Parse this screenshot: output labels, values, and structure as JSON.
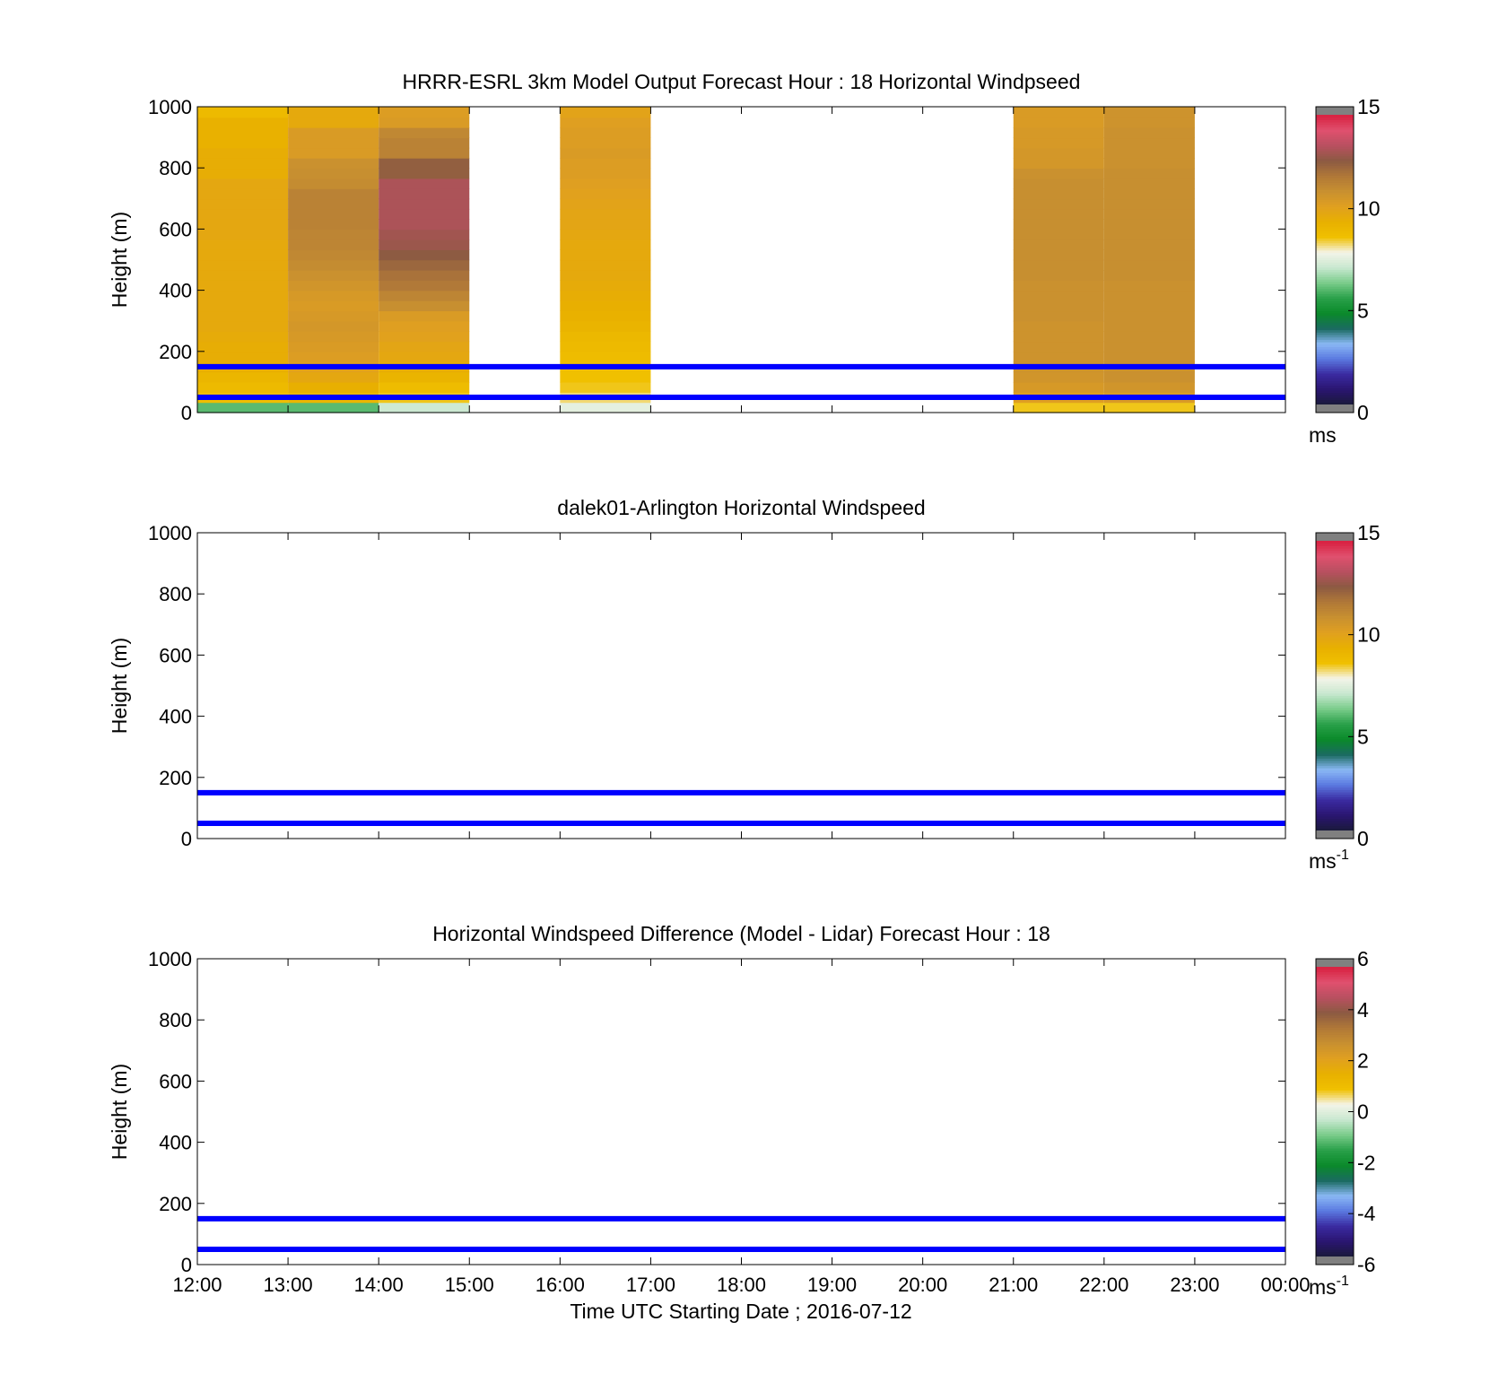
{
  "chart_data": [
    {
      "type": "heatmap",
      "title": "HRRR-ESRL 3km Model Output   Forecast Hour : 18 Horizontal Windpseed",
      "ylabel": "Height (m)",
      "ylim": [
        0,
        1000
      ],
      "yticks": [
        "0",
        "200",
        "400",
        "600",
        "800",
        "1000"
      ],
      "xlim_hours": [
        12,
        24
      ],
      "x_ticks": [
        "12:00",
        "13:00",
        "14:00",
        "15:00",
        "16:00",
        "17:00",
        "18:00",
        "19:00",
        "20:00",
        "21:00",
        "22:00",
        "23:00",
        "00:00"
      ],
      "show_x_tick_labels": false,
      "colorbar": {
        "range": [
          0,
          15
        ],
        "ticks": [
          "0",
          "5",
          "10",
          "15"
        ],
        "unit": "ms",
        "unit_sup": ""
      },
      "reference_lines_m": [
        50,
        150
      ],
      "reference_line_color": "#0000ff",
      "bin_height_m": 33.3,
      "columns": [
        {
          "time": "12:00",
          "values": [
            6.0,
            8.8,
            9.0,
            9.2,
            9.5,
            9.6,
            9.6,
            9.7,
            9.8,
            9.8,
            9.8,
            9.8,
            9.8,
            9.8,
            9.8,
            9.8,
            9.8,
            9.9,
            9.9,
            9.9,
            9.9,
            9.9,
            9.9,
            9.6,
            9.6,
            9.6,
            9.4,
            9.4,
            9.4,
            9.0
          ]
        },
        {
          "time": "13:00",
          "values": [
            6.0,
            9.2,
            9.5,
            9.9,
            10.2,
            10.4,
            10.5,
            10.6,
            10.7,
            10.6,
            10.5,
            10.6,
            10.8,
            11.0,
            11.2,
            11.3,
            11.4,
            11.4,
            11.5,
            11.5,
            11.5,
            11.5,
            11.2,
            11.1,
            11.0,
            10.5,
            10.5,
            10.5,
            9.8,
            9.8
          ]
        },
        {
          "time": "14:00",
          "values": [
            7.2,
            8.6,
            8.9,
            9.3,
            9.6,
            9.9,
            10.0,
            10.2,
            10.3,
            10.5,
            11.1,
            11.4,
            11.8,
            12.0,
            12.3,
            12.6,
            12.9,
            13.0,
            13.2,
            13.2,
            13.2,
            13.2,
            13.2,
            12.5,
            12.5,
            11.5,
            11.5,
            11.3,
            10.5,
            10.4
          ]
        },
        {
          "time": "16:00",
          "values": [
            7.6,
            8.3,
            8.6,
            8.7,
            8.8,
            8.9,
            9.0,
            9.1,
            9.3,
            9.4,
            9.5,
            9.6,
            9.7,
            9.8,
            9.8,
            9.8,
            9.8,
            9.9,
            10.0,
            10.0,
            10.1,
            10.2,
            10.3,
            10.4,
            10.4,
            10.5,
            10.4,
            10.4,
            10.3,
            10.1
          ]
        },
        {
          "time": "21:00",
          "values": [
            8.6,
            10.3,
            10.6,
            10.8,
            10.9,
            10.9,
            10.9,
            10.9,
            10.9,
            11.0,
            11.0,
            11.0,
            11.0,
            11.1,
            11.1,
            11.1,
            11.1,
            11.1,
            11.1,
            11.1,
            11.1,
            11.1,
            11.1,
            11.0,
            10.7,
            10.7,
            10.6,
            10.6,
            10.5,
            10.5
          ]
        },
        {
          "time": "22:00",
          "values": [
            8.6,
            10.5,
            10.8,
            11.0,
            11.0,
            11.0,
            11.0,
            11.0,
            11.0,
            11.0,
            11.0,
            11.0,
            11.0,
            11.1,
            11.1,
            11.1,
            11.1,
            11.1,
            11.1,
            11.1,
            11.1,
            11.1,
            11.1,
            11.1,
            11.0,
            11.0,
            11.0,
            11.0,
            10.9,
            10.9
          ]
        }
      ]
    },
    {
      "type": "heatmap",
      "title": "dalek01-Arlington  Horizontal Windspeed",
      "ylabel": "Height (m)",
      "ylim": [
        0,
        1000
      ],
      "yticks": [
        "0",
        "200",
        "400",
        "600",
        "800",
        "1000"
      ],
      "xlim_hours": [
        12,
        24
      ],
      "x_ticks": [
        "12:00",
        "13:00",
        "14:00",
        "15:00",
        "16:00",
        "17:00",
        "18:00",
        "19:00",
        "20:00",
        "21:00",
        "22:00",
        "23:00",
        "00:00"
      ],
      "show_x_tick_labels": false,
      "colorbar": {
        "range": [
          0,
          15
        ],
        "ticks": [
          "0",
          "5",
          "10",
          "15"
        ],
        "unit": "ms",
        "unit_sup": "-1"
      },
      "reference_lines_m": [
        50,
        150
      ],
      "reference_line_color": "#0000ff",
      "bin_height_m": 33.3,
      "columns": []
    },
    {
      "type": "heatmap",
      "title": "Horizontal Windspeed Difference (Model - Lidar) Forecast Hour : 18",
      "ylabel": "Height (m)",
      "xlabel": "Time UTC  Starting Date ; 2016-07-12",
      "ylim": [
        0,
        1000
      ],
      "yticks": [
        "0",
        "200",
        "400",
        "600",
        "800",
        "1000"
      ],
      "xlim_hours": [
        12,
        24
      ],
      "x_ticks": [
        "12:00",
        "13:00",
        "14:00",
        "15:00",
        "16:00",
        "17:00",
        "18:00",
        "19:00",
        "20:00",
        "21:00",
        "22:00",
        "23:00",
        "00:00"
      ],
      "show_x_tick_labels": true,
      "colorbar": {
        "range": [
          -6,
          6
        ],
        "ticks": [
          "-6",
          "-4",
          "-2",
          "0",
          "2",
          "4",
          "6"
        ],
        "unit": "ms",
        "unit_sup": "-1"
      },
      "reference_lines_m": [
        50,
        150
      ],
      "reference_line_color": "#0000ff",
      "bin_height_m": 33.3,
      "columns": []
    }
  ],
  "colormap": [
    "#1a1a3a",
    "#2a1570",
    "#3a2aa0",
    "#5a78e0",
    "#8ab8f5",
    "#1a6a60",
    "#0a8a2a",
    "#2aa04a",
    "#7acc8a",
    "#c8e8d0",
    "#f4f4e8",
    "#f0c000",
    "#e8b000",
    "#e0a020",
    "#c89030",
    "#b07838",
    "#8c5a42",
    "#b85060",
    "#e0506e",
    "#d82040"
  ]
}
